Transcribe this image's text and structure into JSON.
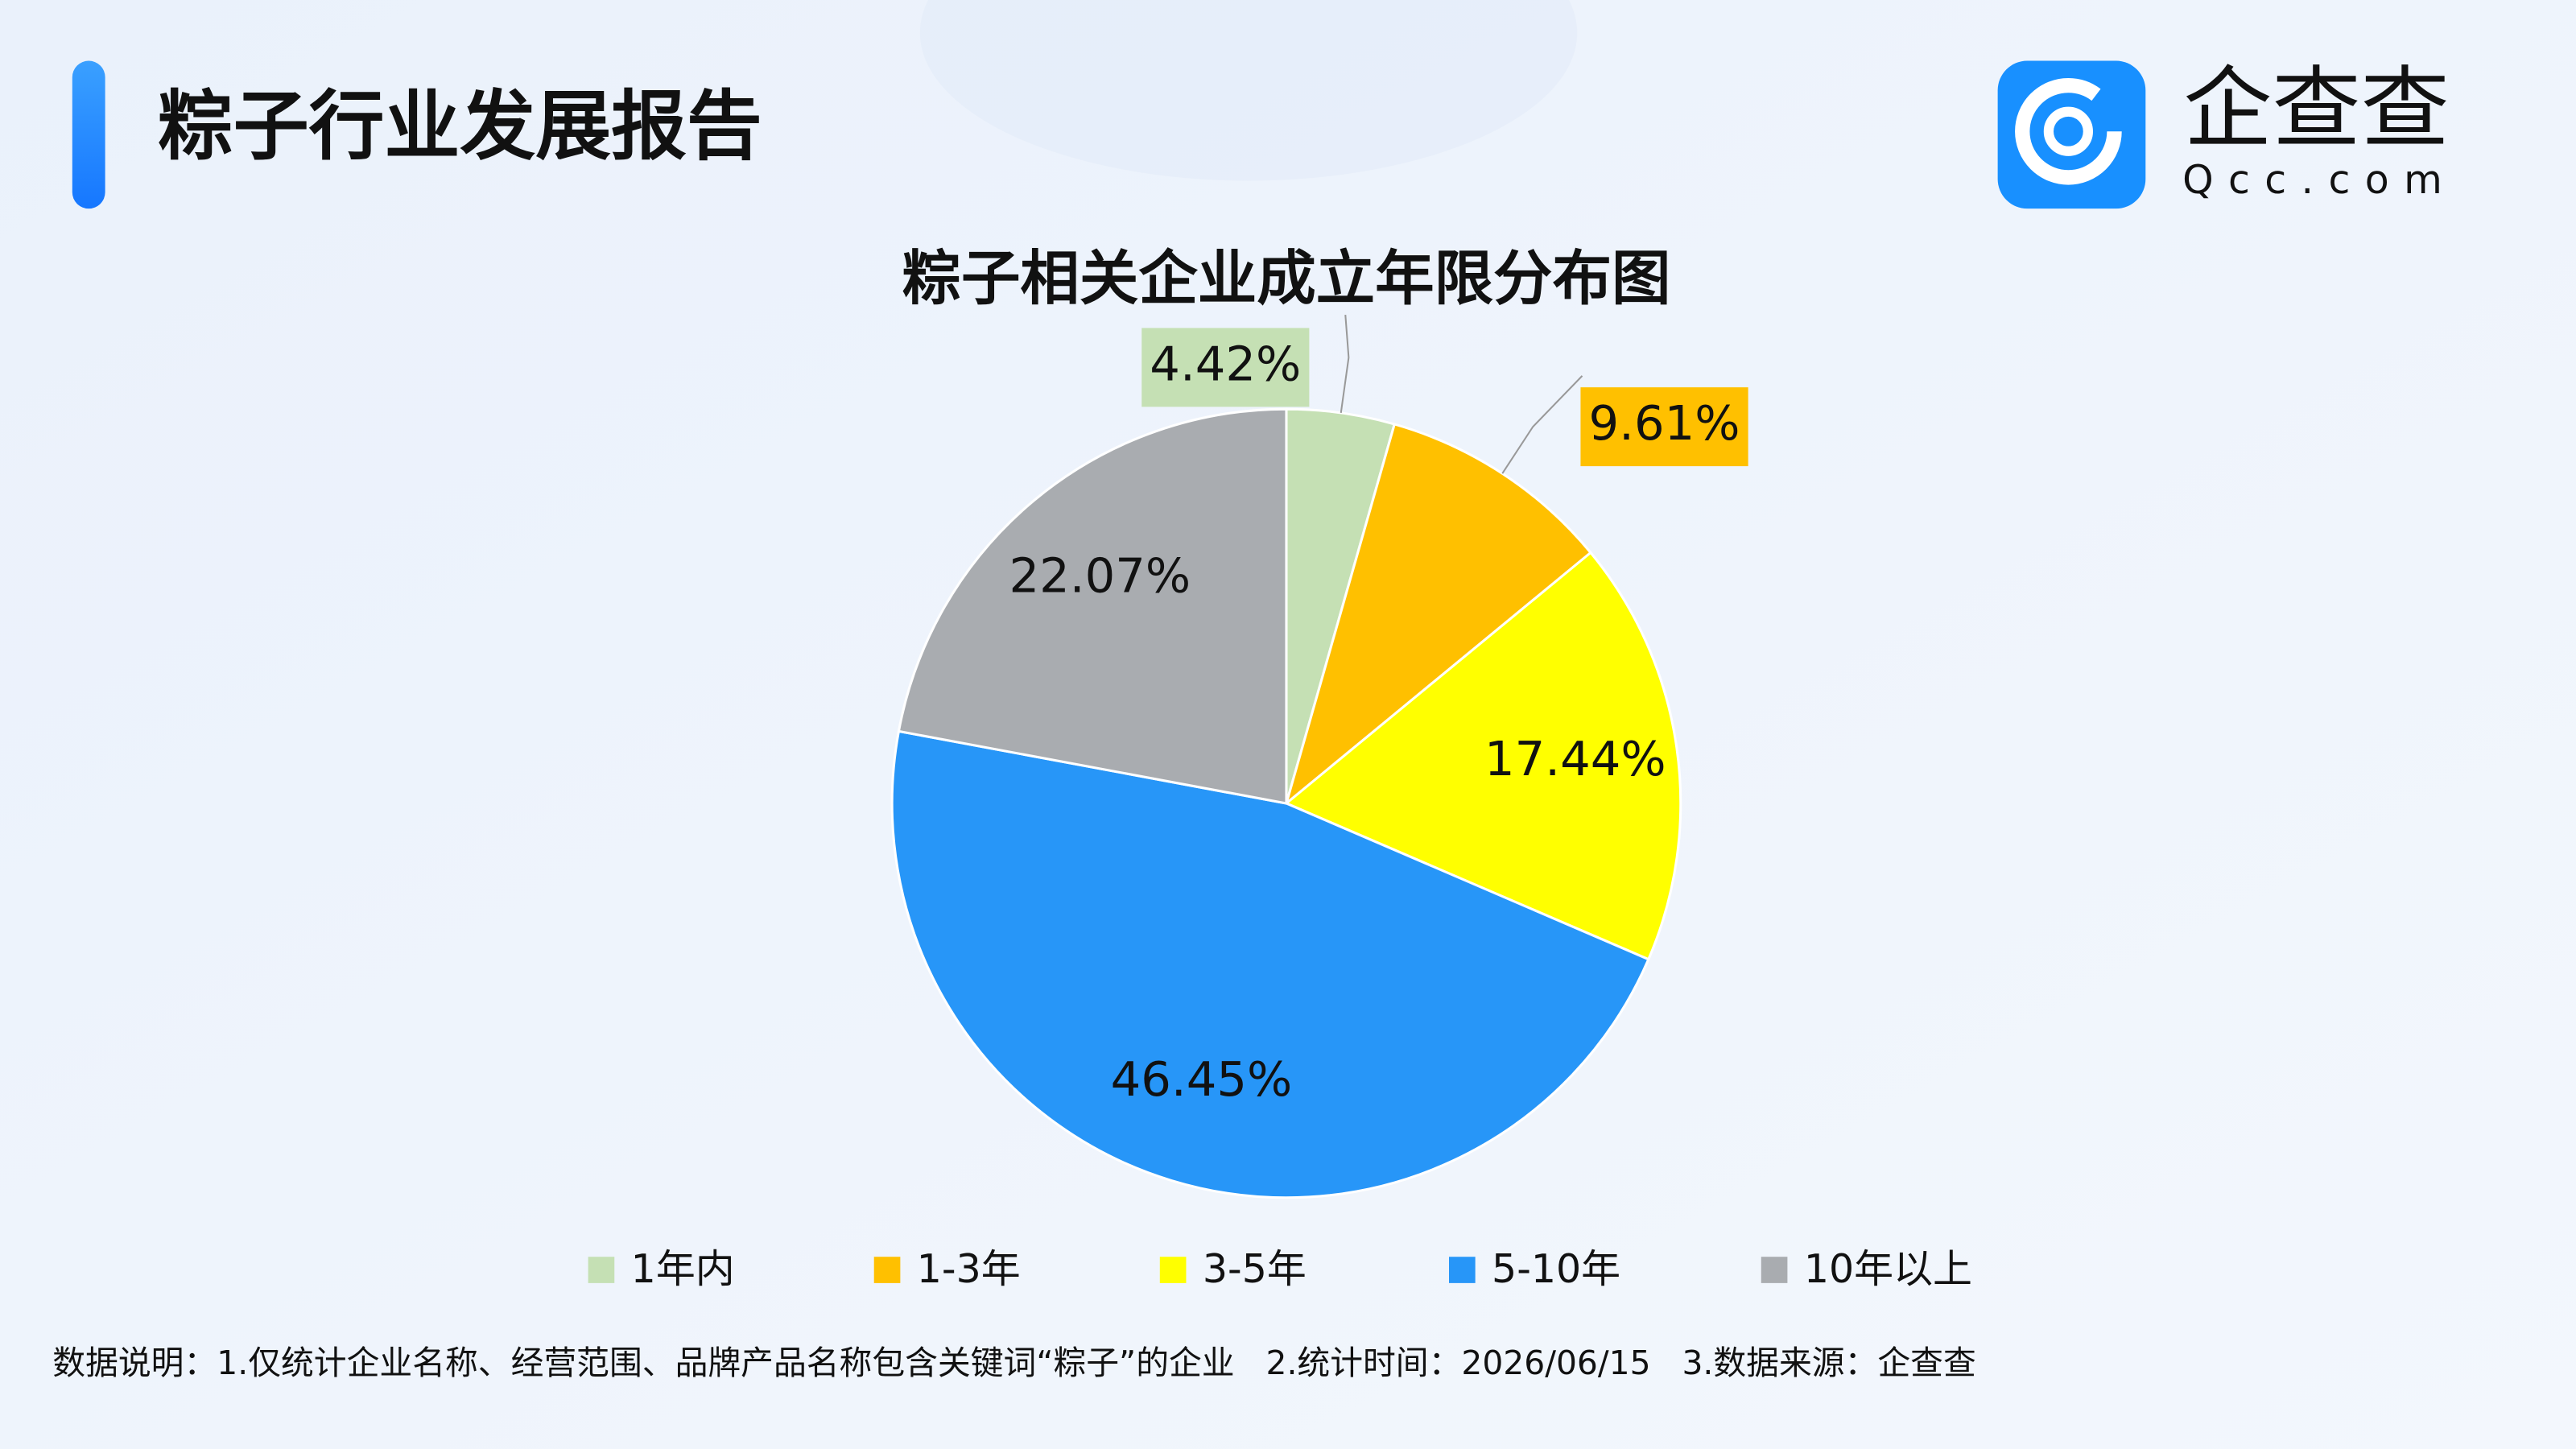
{
  "header": {
    "title": "粽子行业发展报告",
    "logo_text": "企查查",
    "logo_sub": "Qcc.com"
  },
  "chart_data": {
    "type": "pie",
    "title": "粽子相关企业成立年限分布图",
    "categories": [
      "1年内",
      "1-3年",
      "3-5年",
      "5-10年",
      "10年以上"
    ],
    "values": [
      4.42,
      9.61,
      17.44,
      46.45,
      22.07
    ],
    "value_labels": [
      "4.42%",
      "9.61%",
      "17.44%",
      "46.45%",
      "22.07%"
    ],
    "colors": [
      "#c5e0b4",
      "#ffc000",
      "#ffff00",
      "#2796f8",
      "#a9acb0"
    ],
    "legend": "bottom"
  },
  "footnote": "数据说明：1.仅统计企业名称、经营范围、品牌产品名称包含关键词“粽子”的企业   2.统计时间：2026/06/15   3.数据来源：企查查"
}
